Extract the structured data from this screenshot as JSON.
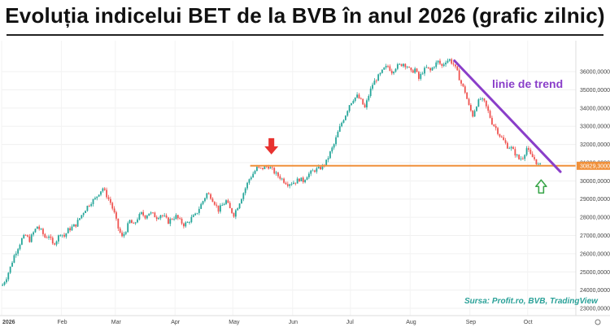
{
  "title": "Evoluția indicelui BET de la BVB în anul 2026 (grafic zilnic)",
  "source": "Sursa: Profit.ro, BVB, TradingView",
  "colors": {
    "up": "#26a69a",
    "down": "#ef5350",
    "support": "#f0903a",
    "trend": "#8a3ec9",
    "arrow_down": "#e8322f",
    "arrow_up": "#3aa64a",
    "badge": "#f0903a"
  },
  "chart_data": {
    "type": "candlestick",
    "title": "Evoluția indicelui BET de la BVB în anul 2026 (grafic zilnic)",
    "ylim": [
      22600,
      37700
    ],
    "y_ticks": [
      "23000,0000",
      "24000,0000",
      "25000,0000",
      "26000,0000",
      "27000,0000",
      "28000,0000",
      "29000,0000",
      "30000,0000",
      "31000,0000",
      "32000,0000",
      "33000,0000",
      "34000,0000",
      "35000,0000",
      "36000,0000"
    ],
    "y_tick_values": [
      23000,
      24000,
      25000,
      26000,
      27000,
      28000,
      29000,
      30000,
      31000,
      32000,
      33000,
      34000,
      35000,
      36000
    ],
    "x_ticks": [
      "2026",
      "Feb",
      "Mar",
      "Apr",
      "May",
      "Jun",
      "Jul",
      "Aug",
      "Sep",
      "Oct"
    ],
    "x_tick_days": [
      0,
      31,
      59,
      90,
      120,
      151,
      181,
      212,
      243,
      273
    ],
    "last_price_label": "30829,3000",
    "last_price": 30829.3,
    "support_level": 30830,
    "support_from_day": 129,
    "trend_label": "linie de trend",
    "trend_line": {
      "from": {
        "day": 235,
        "value": 36600
      },
      "to": {
        "day": 290,
        "value": 30500
      }
    },
    "arrow_down": {
      "day": 140,
      "value": 31450
    },
    "arrow_up": {
      "day": 280,
      "value": 30050
    },
    "points": [
      [
        0,
        24300
      ],
      [
        2,
        24700
      ],
      [
        4,
        25250
      ],
      [
        6,
        25900
      ],
      [
        8,
        26350
      ],
      [
        10,
        26800
      ],
      [
        12,
        27000
      ],
      [
        14,
        26750
      ],
      [
        16,
        27150
      ],
      [
        18,
        27500
      ],
      [
        20,
        27250
      ],
      [
        22,
        26900
      ],
      [
        24,
        27000
      ],
      [
        26,
        26500
      ],
      [
        28,
        26750
      ],
      [
        30,
        27150
      ],
      [
        32,
        26950
      ],
      [
        34,
        27300
      ],
      [
        36,
        27450
      ],
      [
        38,
        27600
      ],
      [
        40,
        27950
      ],
      [
        42,
        28300
      ],
      [
        44,
        28600
      ],
      [
        46,
        28850
      ],
      [
        48,
        29000
      ],
      [
        50,
        29350
      ],
      [
        52,
        29600
      ],
      [
        54,
        29200
      ],
      [
        56,
        28800
      ],
      [
        58,
        28200
      ],
      [
        60,
        27400
      ],
      [
        62,
        26900
      ],
      [
        64,
        27300
      ],
      [
        66,
        27800
      ],
      [
        68,
        27550
      ],
      [
        70,
        27950
      ],
      [
        72,
        28200
      ],
      [
        74,
        28050
      ],
      [
        76,
        28250
      ],
      [
        78,
        28150
      ],
      [
        80,
        28000
      ],
      [
        82,
        28150
      ],
      [
        84,
        28000
      ],
      [
        86,
        27750
      ],
      [
        88,
        27950
      ],
      [
        90,
        28050
      ],
      [
        92,
        27800
      ],
      [
        94,
        27600
      ],
      [
        96,
        27700
      ],
      [
        98,
        27950
      ],
      [
        100,
        28100
      ],
      [
        102,
        28500
      ],
      [
        104,
        28900
      ],
      [
        106,
        29300
      ],
      [
        108,
        29150
      ],
      [
        110,
        28800
      ],
      [
        112,
        28400
      ],
      [
        114,
        28650
      ],
      [
        116,
        28900
      ],
      [
        118,
        28450
      ],
      [
        120,
        28150
      ],
      [
        122,
        28600
      ],
      [
        124,
        29100
      ],
      [
        126,
        29600
      ],
      [
        128,
        30100
      ],
      [
        130,
        30400
      ],
      [
        132,
        30700
      ],
      [
        134,
        30650
      ],
      [
        136,
        30750
      ],
      [
        138,
        30800
      ],
      [
        140,
        30600
      ],
      [
        142,
        30350
      ],
      [
        144,
        30200
      ],
      [
        146,
        30000
      ],
      [
        148,
        29850
      ],
      [
        150,
        29900
      ],
      [
        152,
        29950
      ],
      [
        154,
        30100
      ],
      [
        156,
        30000
      ],
      [
        158,
        30300
      ],
      [
        160,
        30450
      ],
      [
        162,
        30600
      ],
      [
        164,
        30650
      ],
      [
        166,
        30800
      ],
      [
        168,
        31050
      ],
      [
        170,
        31550
      ],
      [
        172,
        32000
      ],
      [
        174,
        32650
      ],
      [
        176,
        33200
      ],
      [
        178,
        33650
      ],
      [
        180,
        34200
      ],
      [
        182,
        34500
      ],
      [
        184,
        34650
      ],
      [
        186,
        34400
      ],
      [
        188,
        34000
      ],
      [
        190,
        34700
      ],
      [
        192,
        35300
      ],
      [
        194,
        35600
      ],
      [
        196,
        35850
      ],
      [
        198,
        36150
      ],
      [
        200,
        36300
      ],
      [
        202,
        36000
      ],
      [
        204,
        36250
      ],
      [
        206,
        36350
      ],
      [
        208,
        36450
      ],
      [
        210,
        36300
      ],
      [
        212,
        35950
      ],
      [
        214,
        36150
      ],
      [
        216,
        35600
      ],
      [
        218,
        36000
      ],
      [
        220,
        36200
      ],
      [
        222,
        36050
      ],
      [
        224,
        36350
      ],
      [
        226,
        36550
      ],
      [
        228,
        36300
      ],
      [
        230,
        36600
      ],
      [
        232,
        36650
      ],
      [
        234,
        36400
      ],
      [
        236,
        35950
      ],
      [
        238,
        35350
      ],
      [
        240,
        34900
      ],
      [
        242,
        34100
      ],
      [
        244,
        33600
      ],
      [
        246,
        34200
      ],
      [
        248,
        34500
      ],
      [
        250,
        34300
      ],
      [
        252,
        33800
      ],
      [
        254,
        33200
      ],
      [
        256,
        32900
      ],
      [
        258,
        32500
      ],
      [
        260,
        32200
      ],
      [
        262,
        31900
      ],
      [
        264,
        31800
      ],
      [
        266,
        31500
      ],
      [
        268,
        31200
      ],
      [
        270,
        31300
      ],
      [
        272,
        31800
      ],
      [
        274,
        31400
      ],
      [
        276,
        31200
      ],
      [
        278,
        30850
      ],
      [
        280,
        30829
      ]
    ]
  }
}
